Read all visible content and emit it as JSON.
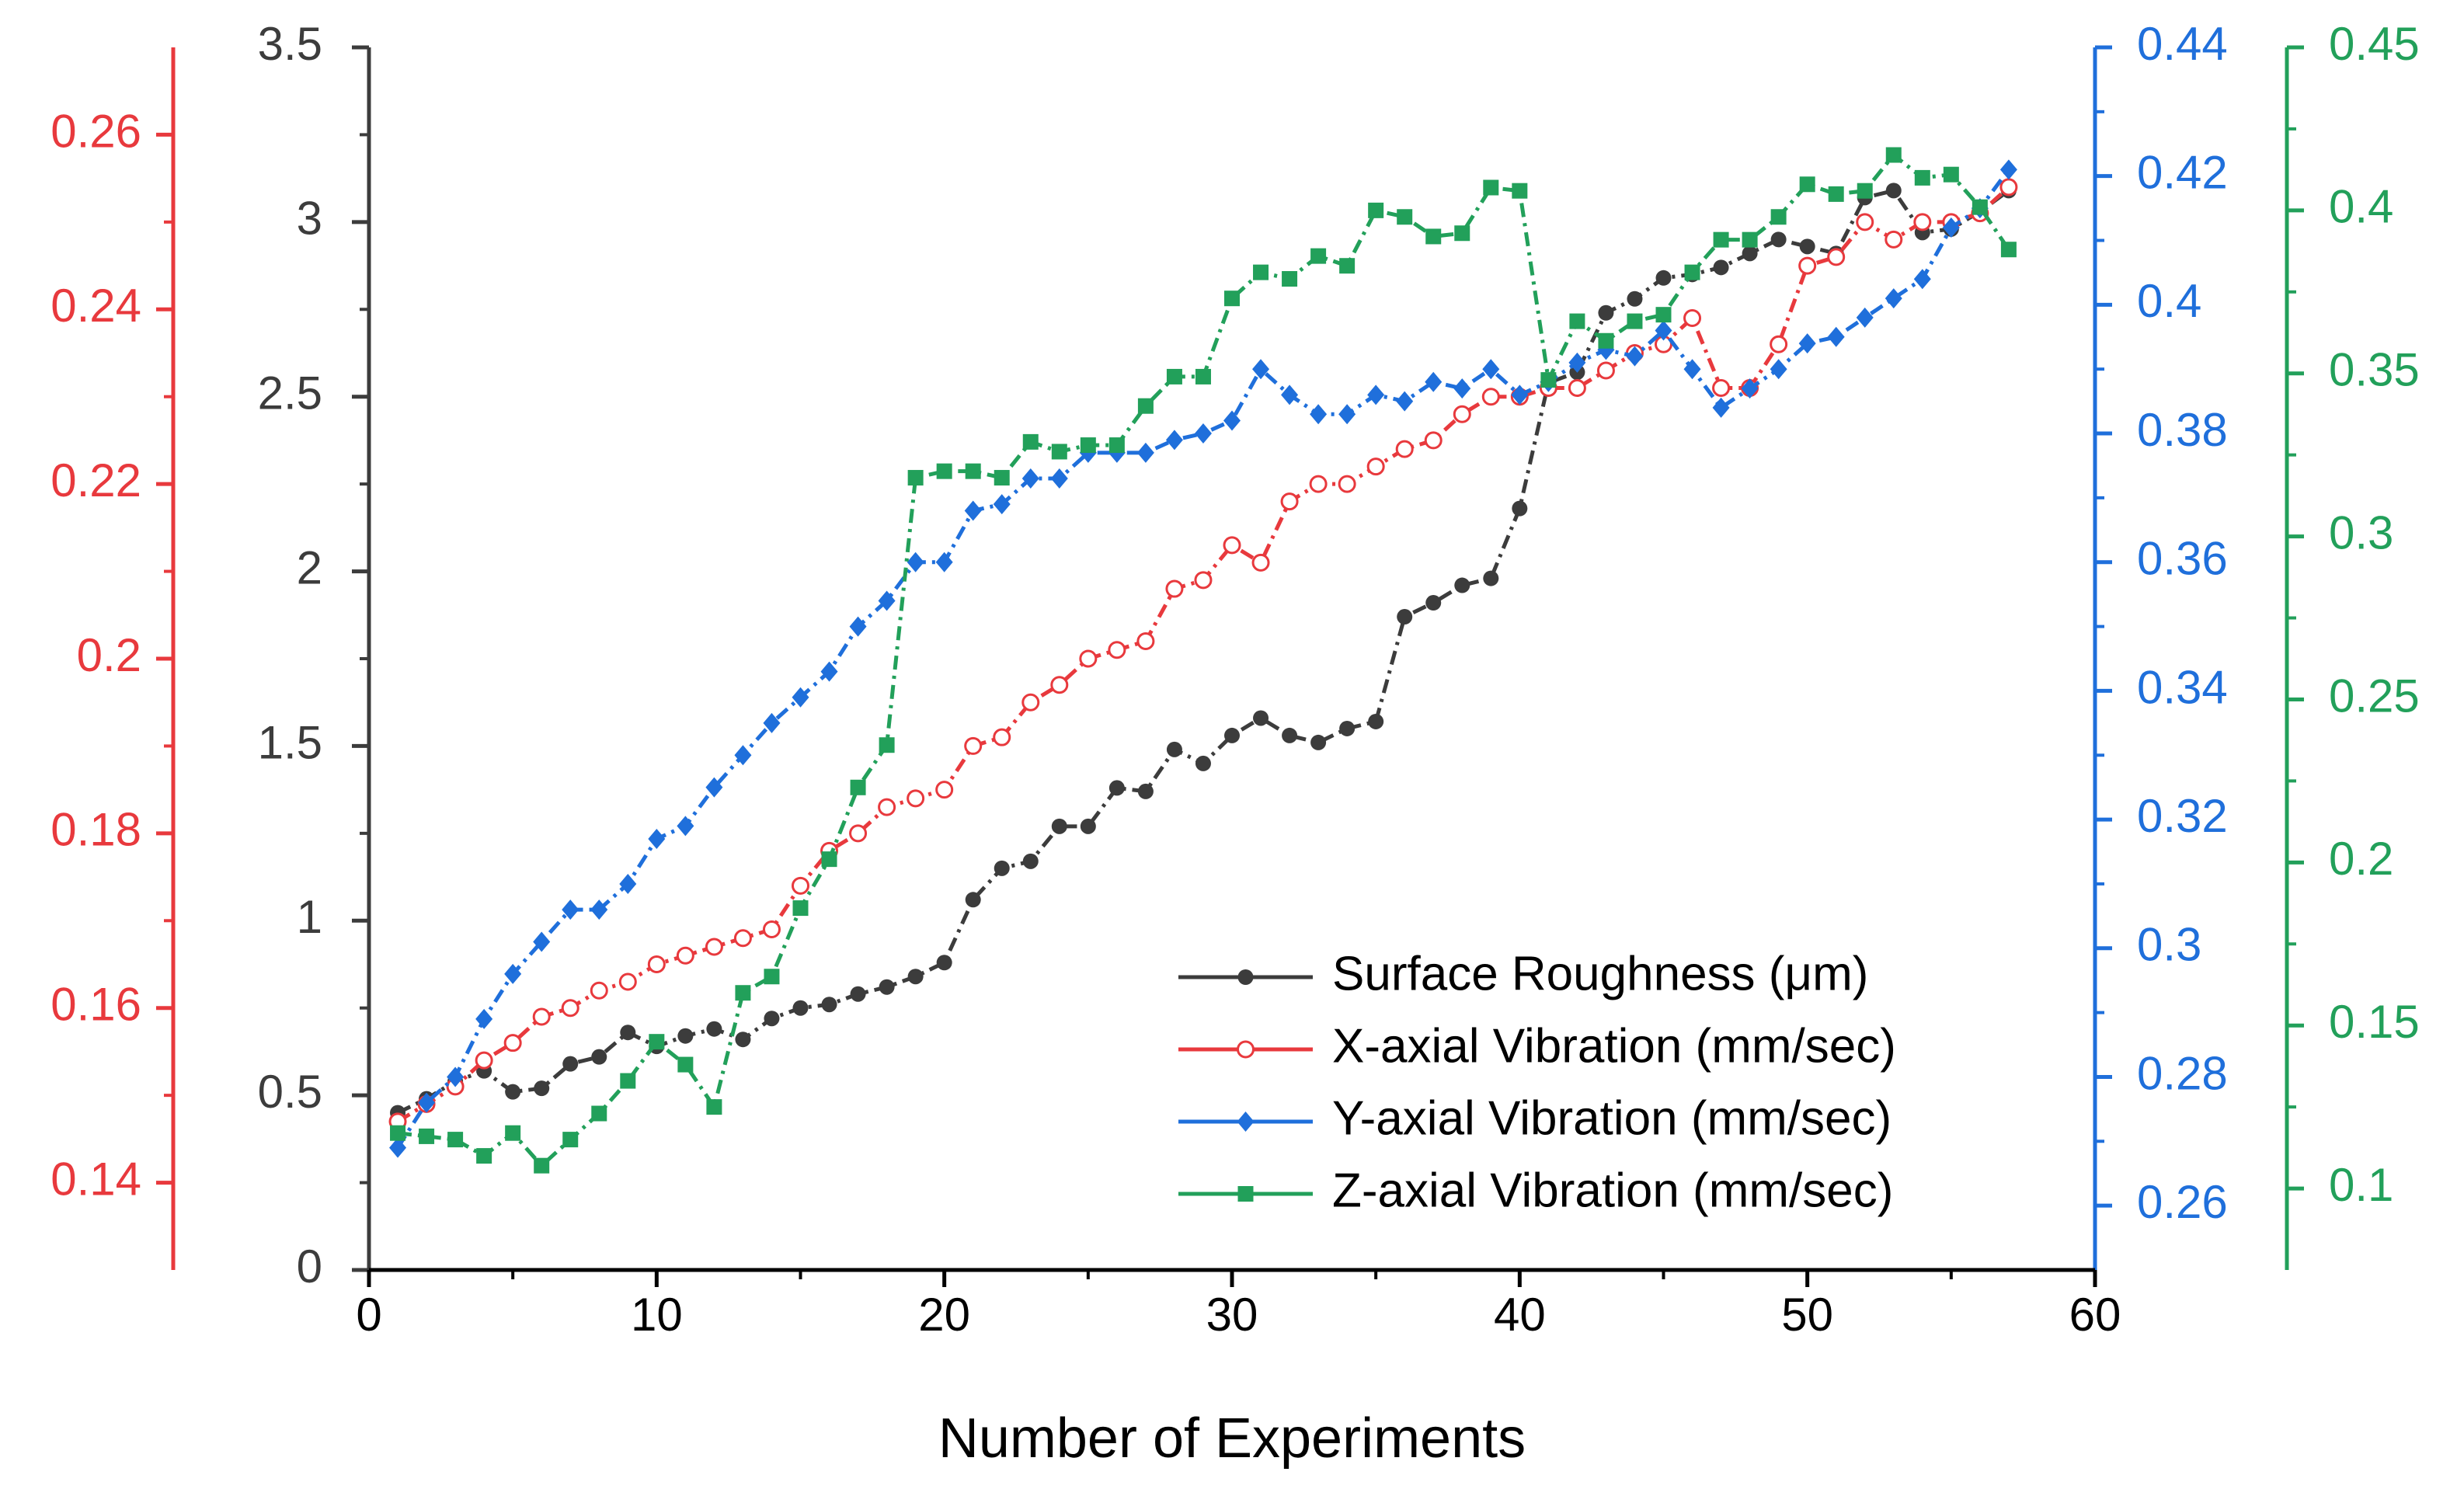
{
  "chart_data": {
    "type": "line",
    "x_label": "Number of Experiments",
    "x": [
      1,
      2,
      3,
      4,
      5,
      6,
      7,
      8,
      9,
      10,
      11,
      12,
      13,
      14,
      15,
      16,
      17,
      18,
      19,
      20,
      21,
      22,
      23,
      24,
      25,
      26,
      27,
      28,
      29,
      30,
      31,
      32,
      33,
      34,
      35,
      36,
      37,
      38,
      39,
      40,
      41,
      42,
      43,
      44,
      45,
      46,
      47,
      48,
      49,
      50,
      51,
      52,
      53,
      54,
      55,
      56,
      57
    ],
    "xlim": [
      0,
      60
    ],
    "xticks": [
      0,
      10,
      20,
      30,
      40,
      50,
      60
    ],
    "ylim": [
      0,
      3.5
    ],
    "yticks": [
      0,
      0.5,
      1,
      1.5,
      2,
      2.5,
      3,
      3.5
    ],
    "y2lim": [
      0.13,
      0.27
    ],
    "y2ticks": [
      0.14,
      0.16,
      0.18,
      0.2,
      0.22,
      0.24,
      0.26
    ],
    "y3lim": [
      0.25,
      0.44
    ],
    "y3ticks": [
      0.26,
      0.28,
      0.3,
      0.32,
      0.34,
      0.36,
      0.38,
      0.4,
      0.42,
      0.44
    ],
    "y4lim": [
      0.075,
      0.45
    ],
    "y4ticks": [
      0.1,
      0.15,
      0.2,
      0.25,
      0.3,
      0.35,
      0.4,
      0.45
    ],
    "legend": "lower right",
    "series": [
      {
        "name": "Surface Roughness (μm)",
        "color": "#3c3c3c",
        "marker": "circle",
        "axis": "y",
        "values": [
          0.45,
          0.49,
          0.54,
          0.57,
          0.51,
          0.52,
          0.59,
          0.61,
          0.68,
          0.64,
          0.67,
          0.69,
          0.66,
          0.72,
          0.75,
          0.76,
          0.79,
          0.81,
          0.84,
          0.88,
          1.06,
          1.15,
          1.17,
          1.27,
          1.27,
          1.38,
          1.37,
          1.49,
          1.45,
          1.53,
          1.58,
          1.53,
          1.51,
          1.55,
          1.57,
          1.87,
          1.91,
          1.96,
          1.98,
          2.18,
          2.54,
          2.57,
          2.74,
          2.78,
          2.84,
          2.85,
          2.87,
          2.91,
          2.95,
          2.93,
          2.91,
          3.07,
          3.09,
          2.97,
          2.98,
          3.03,
          3.09
        ]
      },
      {
        "name": "X-axial Vibration (mm/sec)",
        "color": "#e8393d",
        "marker": "open-circle",
        "axis": "y2",
        "values": [
          0.147,
          0.149,
          0.151,
          0.154,
          0.156,
          0.159,
          0.16,
          0.162,
          0.163,
          0.165,
          0.166,
          0.167,
          0.168,
          0.169,
          0.174,
          0.178,
          0.18,
          0.183,
          0.184,
          0.185,
          0.19,
          0.191,
          0.195,
          0.197,
          0.2,
          0.201,
          0.202,
          0.208,
          0.209,
          0.213,
          0.211,
          0.218,
          0.22,
          0.22,
          0.222,
          0.224,
          0.225,
          0.228,
          0.23,
          0.23,
          0.231,
          0.231,
          0.233,
          0.235,
          0.236,
          0.239,
          0.231,
          0.231,
          0.236,
          0.245,
          0.246,
          0.25,
          0.248,
          0.25,
          0.25,
          0.251,
          0.254
        ]
      },
      {
        "name": "Y-axial Vibration (mm/sec)",
        "color": "#1f6fdb",
        "marker": "diamond",
        "axis": "y3",
        "values": [
          0.269,
          0.276,
          0.28,
          0.289,
          0.296,
          0.301,
          0.306,
          0.306,
          0.31,
          0.317,
          0.319,
          0.325,
          0.33,
          0.335,
          0.339,
          0.343,
          0.35,
          0.354,
          0.36,
          0.36,
          0.368,
          0.369,
          0.373,
          0.373,
          0.377,
          0.377,
          0.377,
          0.379,
          0.38,
          0.382,
          0.39,
          0.386,
          0.383,
          0.383,
          0.386,
          0.385,
          0.388,
          0.387,
          0.39,
          0.386,
          0.388,
          0.391,
          0.393,
          0.392,
          0.396,
          0.39,
          0.384,
          0.387,
          0.39,
          0.394,
          0.395,
          0.398,
          0.401,
          0.404,
          0.412,
          0.415,
          0.421
        ]
      },
      {
        "name": "Z-axial Vibration (mm/sec)",
        "color": "#22a05a",
        "marker": "square",
        "axis": "y4",
        "values": [
          0.117,
          0.116,
          0.115,
          0.11,
          0.117,
          0.107,
          0.115,
          0.123,
          0.133,
          0.145,
          0.138,
          0.125,
          0.16,
          0.165,
          0.186,
          0.201,
          0.223,
          0.236,
          0.318,
          0.32,
          0.32,
          0.318,
          0.329,
          0.326,
          0.328,
          0.328,
          0.34,
          0.349,
          0.349,
          0.373,
          0.381,
          0.379,
          0.386,
          0.383,
          0.4,
          0.398,
          0.392,
          0.393,
          0.407,
          0.406,
          0.348,
          0.366,
          0.36,
          0.366,
          0.368,
          0.381,
          0.391,
          0.391,
          0.398,
          0.408,
          0.405,
          0.406,
          0.417,
          0.41,
          0.411,
          0.401,
          0.388
        ]
      }
    ]
  }
}
